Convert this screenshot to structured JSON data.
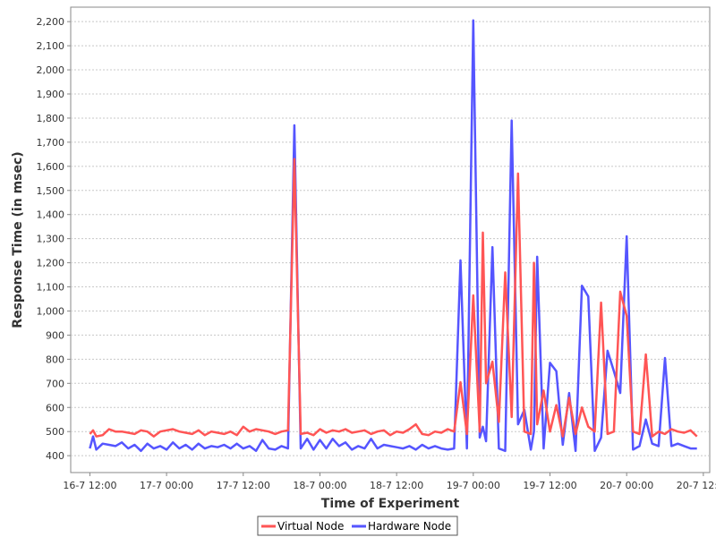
{
  "chart_data": {
    "type": "line",
    "xlabel": "Time of Experiment",
    "ylabel": "Response Time (in msec)",
    "ylim": [
      330,
      2260
    ],
    "xlim": [
      "2008-07-16T09:00",
      "2008-07-20T13:00"
    ],
    "x_tick_labels": [
      "16-7 12:00",
      "17-7 00:00",
      "17-7 12:00",
      "18-7 00:00",
      "18-7 12:00",
      "19-7 00:00",
      "19-7 12:00",
      "20-7 00:00",
      "20-7 12:00"
    ],
    "y_ticks": [
      400,
      500,
      600,
      700,
      800,
      900,
      1000,
      1100,
      1200,
      1300,
      1400,
      1500,
      1600,
      1700,
      1800,
      1900,
      2000,
      2100,
      2200
    ],
    "y_tick_labels": [
      "400",
      "500",
      "600",
      "700",
      "800",
      "900",
      "1,000",
      "1,100",
      "1,200",
      "1,300",
      "1,400",
      "1,500",
      "1,600",
      "1,700",
      "1,800",
      "1,900",
      "2,000",
      "2,100",
      "2,200"
    ],
    "grid": true,
    "legend_position": "bottom-center",
    "series": [
      {
        "name": "Virtual Node",
        "color": "#ff5555",
        "points": [
          [
            "2008-07-16T12:00",
            490
          ],
          [
            "2008-07-16T12:30",
            505
          ],
          [
            "2008-07-16T13:00",
            480
          ],
          [
            "2008-07-16T14:00",
            485
          ],
          [
            "2008-07-16T15:00",
            510
          ],
          [
            "2008-07-16T16:00",
            500
          ],
          [
            "2008-07-16T17:00",
            500
          ],
          [
            "2008-07-16T18:00",
            495
          ],
          [
            "2008-07-16T19:00",
            490
          ],
          [
            "2008-07-16T20:00",
            505
          ],
          [
            "2008-07-16T21:00",
            500
          ],
          [
            "2008-07-16T22:00",
            480
          ],
          [
            "2008-07-16T23:00",
            500
          ],
          [
            "2008-07-17T00:00",
            505
          ],
          [
            "2008-07-17T01:00",
            510
          ],
          [
            "2008-07-17T02:00",
            500
          ],
          [
            "2008-07-17T03:00",
            495
          ],
          [
            "2008-07-17T04:00",
            490
          ],
          [
            "2008-07-17T05:00",
            505
          ],
          [
            "2008-07-17T06:00",
            485
          ],
          [
            "2008-07-17T07:00",
            500
          ],
          [
            "2008-07-17T08:00",
            495
          ],
          [
            "2008-07-17T09:00",
            490
          ],
          [
            "2008-07-17T10:00",
            500
          ],
          [
            "2008-07-17T11:00",
            485
          ],
          [
            "2008-07-17T12:00",
            520
          ],
          [
            "2008-07-17T13:00",
            500
          ],
          [
            "2008-07-17T14:00",
            510
          ],
          [
            "2008-07-17T15:00",
            505
          ],
          [
            "2008-07-17T16:00",
            500
          ],
          [
            "2008-07-17T17:00",
            490
          ],
          [
            "2008-07-17T18:00",
            500
          ],
          [
            "2008-07-17T19:00",
            505
          ],
          [
            "2008-07-17T20:00",
            1630
          ],
          [
            "2008-07-17T21:00",
            490
          ],
          [
            "2008-07-17T22:00",
            495
          ],
          [
            "2008-07-17T23:00",
            485
          ],
          [
            "2008-07-18T00:00",
            510
          ],
          [
            "2008-07-18T01:00",
            495
          ],
          [
            "2008-07-18T02:00",
            505
          ],
          [
            "2008-07-18T03:00",
            500
          ],
          [
            "2008-07-18T04:00",
            510
          ],
          [
            "2008-07-18T05:00",
            495
          ],
          [
            "2008-07-18T06:00",
            500
          ],
          [
            "2008-07-18T07:00",
            505
          ],
          [
            "2008-07-18T08:00",
            490
          ],
          [
            "2008-07-18T09:00",
            500
          ],
          [
            "2008-07-18T10:00",
            505
          ],
          [
            "2008-07-18T11:00",
            485
          ],
          [
            "2008-07-18T12:00",
            500
          ],
          [
            "2008-07-18T13:00",
            495
          ],
          [
            "2008-07-18T14:00",
            510
          ],
          [
            "2008-07-18T15:00",
            530
          ],
          [
            "2008-07-18T16:00",
            490
          ],
          [
            "2008-07-18T17:00",
            485
          ],
          [
            "2008-07-18T18:00",
            500
          ],
          [
            "2008-07-18T19:00",
            495
          ],
          [
            "2008-07-18T20:00",
            510
          ],
          [
            "2008-07-18T21:00",
            500
          ],
          [
            "2008-07-18T22:00",
            705
          ],
          [
            "2008-07-18T23:00",
            490
          ],
          [
            "2008-07-19T00:00",
            1065
          ],
          [
            "2008-07-19T01:00",
            500
          ],
          [
            "2008-07-19T01:30",
            1325
          ],
          [
            "2008-07-19T02:00",
            700
          ],
          [
            "2008-07-19T03:00",
            790
          ],
          [
            "2008-07-19T04:00",
            540
          ],
          [
            "2008-07-19T05:00",
            1160
          ],
          [
            "2008-07-19T06:00",
            560
          ],
          [
            "2008-07-19T07:00",
            1570
          ],
          [
            "2008-07-19T08:00",
            500
          ],
          [
            "2008-07-19T09:00",
            490
          ],
          [
            "2008-07-19T09:30",
            1200
          ],
          [
            "2008-07-19T10:00",
            530
          ],
          [
            "2008-07-19T11:00",
            670
          ],
          [
            "2008-07-19T12:00",
            500
          ],
          [
            "2008-07-19T13:00",
            610
          ],
          [
            "2008-07-19T14:00",
            480
          ],
          [
            "2008-07-19T15:00",
            640
          ],
          [
            "2008-07-19T16:00",
            490
          ],
          [
            "2008-07-19T17:00",
            600
          ],
          [
            "2008-07-19T18:00",
            520
          ],
          [
            "2008-07-19T19:00",
            500
          ],
          [
            "2008-07-19T20:00",
            1035
          ],
          [
            "2008-07-19T21:00",
            490
          ],
          [
            "2008-07-19T22:00",
            500
          ],
          [
            "2008-07-19T23:00",
            1080
          ],
          [
            "2008-07-20T00:00",
            980
          ],
          [
            "2008-07-20T01:00",
            500
          ],
          [
            "2008-07-20T02:00",
            490
          ],
          [
            "2008-07-20T03:00",
            820
          ],
          [
            "2008-07-20T04:00",
            480
          ],
          [
            "2008-07-20T05:00",
            500
          ],
          [
            "2008-07-20T06:00",
            490
          ],
          [
            "2008-07-20T07:00",
            510
          ],
          [
            "2008-07-20T08:00",
            500
          ],
          [
            "2008-07-20T09:00",
            495
          ],
          [
            "2008-07-20T10:00",
            505
          ],
          [
            "2008-07-20T11:00",
            480
          ]
        ]
      },
      {
        "name": "Hardware Node",
        "color": "#5555ff",
        "points": [
          [
            "2008-07-16T12:00",
            430
          ],
          [
            "2008-07-16T12:30",
            480
          ],
          [
            "2008-07-16T13:00",
            425
          ],
          [
            "2008-07-16T14:00",
            450
          ],
          [
            "2008-07-16T15:00",
            445
          ],
          [
            "2008-07-16T16:00",
            440
          ],
          [
            "2008-07-16T17:00",
            455
          ],
          [
            "2008-07-16T18:00",
            430
          ],
          [
            "2008-07-16T19:00",
            445
          ],
          [
            "2008-07-16T20:00",
            420
          ],
          [
            "2008-07-16T21:00",
            450
          ],
          [
            "2008-07-16T22:00",
            430
          ],
          [
            "2008-07-16T23:00",
            440
          ],
          [
            "2008-07-17T00:00",
            425
          ],
          [
            "2008-07-17T01:00",
            455
          ],
          [
            "2008-07-17T02:00",
            430
          ],
          [
            "2008-07-17T03:00",
            445
          ],
          [
            "2008-07-17T04:00",
            425
          ],
          [
            "2008-07-17T05:00",
            450
          ],
          [
            "2008-07-17T06:00",
            430
          ],
          [
            "2008-07-17T07:00",
            440
          ],
          [
            "2008-07-17T08:00",
            435
          ],
          [
            "2008-07-17T09:00",
            445
          ],
          [
            "2008-07-17T10:00",
            430
          ],
          [
            "2008-07-17T11:00",
            450
          ],
          [
            "2008-07-17T12:00",
            430
          ],
          [
            "2008-07-17T13:00",
            440
          ],
          [
            "2008-07-17T14:00",
            420
          ],
          [
            "2008-07-17T15:00",
            465
          ],
          [
            "2008-07-17T16:00",
            430
          ],
          [
            "2008-07-17T17:00",
            425
          ],
          [
            "2008-07-17T18:00",
            440
          ],
          [
            "2008-07-17T19:00",
            430
          ],
          [
            "2008-07-17T20:00",
            1770
          ],
          [
            "2008-07-17T21:00",
            430
          ],
          [
            "2008-07-17T22:00",
            470
          ],
          [
            "2008-07-17T23:00",
            425
          ],
          [
            "2008-07-18T00:00",
            465
          ],
          [
            "2008-07-18T01:00",
            430
          ],
          [
            "2008-07-18T02:00",
            470
          ],
          [
            "2008-07-18T03:00",
            440
          ],
          [
            "2008-07-18T04:00",
            455
          ],
          [
            "2008-07-18T05:00",
            425
          ],
          [
            "2008-07-18T06:00",
            440
          ],
          [
            "2008-07-18T07:00",
            430
          ],
          [
            "2008-07-18T08:00",
            470
          ],
          [
            "2008-07-18T09:00",
            430
          ],
          [
            "2008-07-18T10:00",
            445
          ],
          [
            "2008-07-18T11:00",
            440
          ],
          [
            "2008-07-18T12:00",
            435
          ],
          [
            "2008-07-18T13:00",
            430
          ],
          [
            "2008-07-18T14:00",
            440
          ],
          [
            "2008-07-18T15:00",
            425
          ],
          [
            "2008-07-18T16:00",
            445
          ],
          [
            "2008-07-18T17:00",
            430
          ],
          [
            "2008-07-18T18:00",
            440
          ],
          [
            "2008-07-18T19:00",
            430
          ],
          [
            "2008-07-18T20:00",
            425
          ],
          [
            "2008-07-18T21:00",
            430
          ],
          [
            "2008-07-18T22:00",
            1210
          ],
          [
            "2008-07-18T23:00",
            430
          ],
          [
            "2008-07-19T00:00",
            2205
          ],
          [
            "2008-07-19T01:00",
            475
          ],
          [
            "2008-07-19T01:30",
            520
          ],
          [
            "2008-07-19T02:00",
            460
          ],
          [
            "2008-07-19T03:00",
            1265
          ],
          [
            "2008-07-19T04:00",
            430
          ],
          [
            "2008-07-19T05:00",
            420
          ],
          [
            "2008-07-19T06:00",
            1790
          ],
          [
            "2008-07-19T07:00",
            530
          ],
          [
            "2008-07-19T08:00",
            590
          ],
          [
            "2008-07-19T09:00",
            425
          ],
          [
            "2008-07-19T09:30",
            500
          ],
          [
            "2008-07-19T10:00",
            1225
          ],
          [
            "2008-07-19T11:00",
            430
          ],
          [
            "2008-07-19T12:00",
            785
          ],
          [
            "2008-07-19T13:00",
            750
          ],
          [
            "2008-07-19T14:00",
            445
          ],
          [
            "2008-07-19T15:00",
            660
          ],
          [
            "2008-07-19T16:00",
            420
          ],
          [
            "2008-07-19T17:00",
            1105
          ],
          [
            "2008-07-19T18:00",
            1060
          ],
          [
            "2008-07-19T19:00",
            420
          ],
          [
            "2008-07-19T20:00",
            475
          ],
          [
            "2008-07-19T21:00",
            835
          ],
          [
            "2008-07-19T22:00",
            750
          ],
          [
            "2008-07-19T23:00",
            660
          ],
          [
            "2008-07-20T00:00",
            1310
          ],
          [
            "2008-07-20T01:00",
            425
          ],
          [
            "2008-07-20T02:00",
            440
          ],
          [
            "2008-07-20T03:00",
            550
          ],
          [
            "2008-07-20T04:00",
            450
          ],
          [
            "2008-07-20T05:00",
            440
          ],
          [
            "2008-07-20T06:00",
            805
          ],
          [
            "2008-07-20T07:00",
            440
          ],
          [
            "2008-07-20T08:00",
            450
          ],
          [
            "2008-07-20T09:00",
            440
          ],
          [
            "2008-07-20T10:00",
            430
          ],
          [
            "2008-07-20T11:00",
            430
          ]
        ]
      }
    ]
  }
}
